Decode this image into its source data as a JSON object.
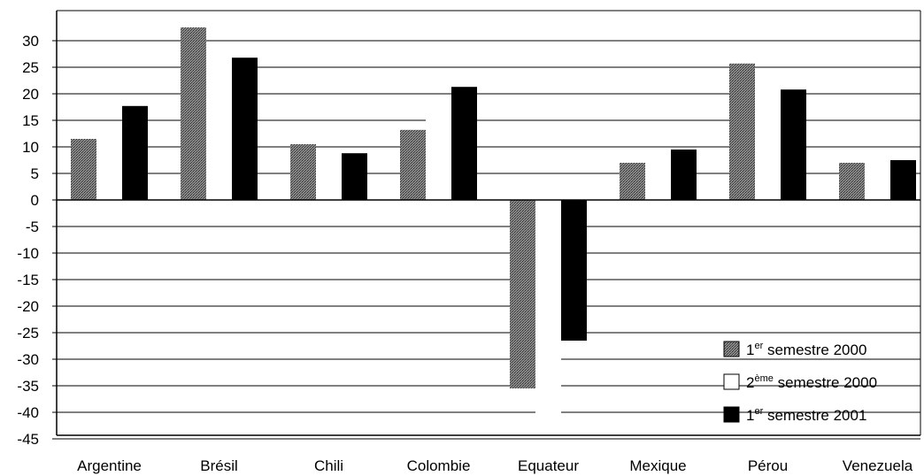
{
  "chart_data": {
    "type": "bar",
    "categories": [
      "Argentine",
      "Brésil",
      "Chili",
      "Colombie",
      "Equateur",
      "Mexique",
      "Pérou",
      "Venezuela"
    ],
    "series": [
      {
        "name": "1er semestre 2000",
        "name_base": "1",
        "name_sup": "er",
        "name_rest": " semestre 2000",
        "color": "#6e6e6e",
        "pattern": "stipple",
        "values": [
          11.5,
          32.5,
          10.5,
          13.2,
          -35.5,
          7,
          25.7,
          7
        ]
      },
      {
        "name": "2ème semestre 2000",
        "name_base": "2",
        "name_sup": "ème",
        "name_rest": " semestre 2000",
        "color": "#ffffff",
        "pattern": "white",
        "values": [
          13,
          27.3,
          9.7,
          18,
          -42.5,
          8.5,
          22.8,
          6.5
        ]
      },
      {
        "name": "1er semestre 2001",
        "name_base": "1",
        "name_sup": "er",
        "name_rest": " semestre 2001",
        "color": "#000000",
        "pattern": "solid",
        "values": [
          17.7,
          26.8,
          8.8,
          21.3,
          -26.5,
          9.5,
          20.8,
          7.5
        ]
      }
    ],
    "yticks": [
      30,
      25,
      20,
      15,
      10,
      5,
      0,
      -5,
      -10,
      -15,
      -20,
      -25,
      -30,
      -35,
      -40,
      -45
    ],
    "ylim": [
      -45,
      36
    ],
    "grid": true,
    "legend_position": "bottom-right",
    "title": "",
    "xlabel": "",
    "ylabel": ""
  }
}
